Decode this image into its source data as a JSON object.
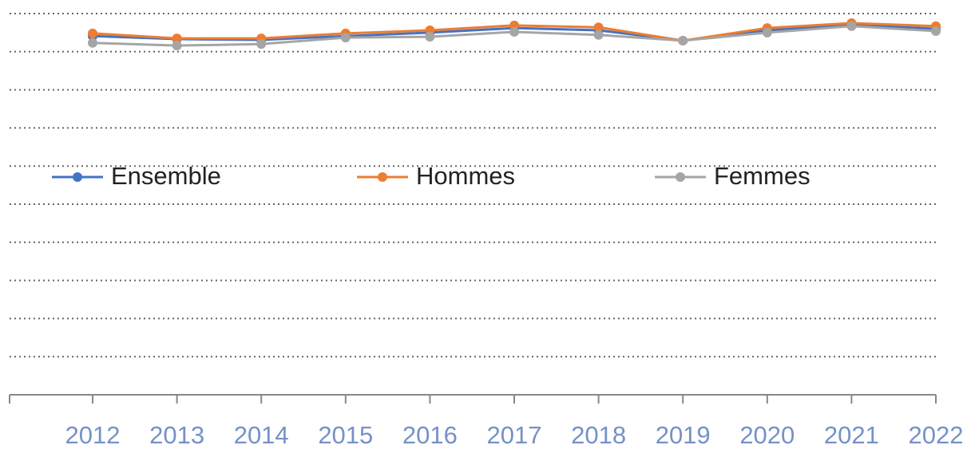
{
  "chart_data": {
    "type": "line",
    "categories": [
      "2012",
      "2013",
      "2014",
      "2015",
      "2016",
      "2017",
      "2018",
      "2019",
      "2020",
      "2021",
      "2022"
    ],
    "series": [
      {
        "name": "Ensemble",
        "color": "#4472c4",
        "values": [
          9.41,
          9.33,
          9.31,
          9.41,
          9.5,
          9.62,
          9.56,
          9.29,
          9.56,
          9.71,
          9.6
        ]
      },
      {
        "name": "Hommes",
        "color": "#ed7d31",
        "values": [
          9.48,
          9.35,
          9.35,
          9.48,
          9.56,
          9.69,
          9.64,
          9.29,
          9.62,
          9.75,
          9.67
        ]
      },
      {
        "name": "Femmes",
        "color": "#a5a5a5",
        "values": [
          9.23,
          9.16,
          9.2,
          9.37,
          9.39,
          9.52,
          9.44,
          9.29,
          9.5,
          9.67,
          9.54
        ]
      }
    ],
    "ylim": [
      0,
      10
    ],
    "yticks": [
      1,
      2,
      3,
      4,
      5,
      6,
      7,
      8,
      9,
      10
    ],
    "grid": true,
    "legend": "center"
  }
}
